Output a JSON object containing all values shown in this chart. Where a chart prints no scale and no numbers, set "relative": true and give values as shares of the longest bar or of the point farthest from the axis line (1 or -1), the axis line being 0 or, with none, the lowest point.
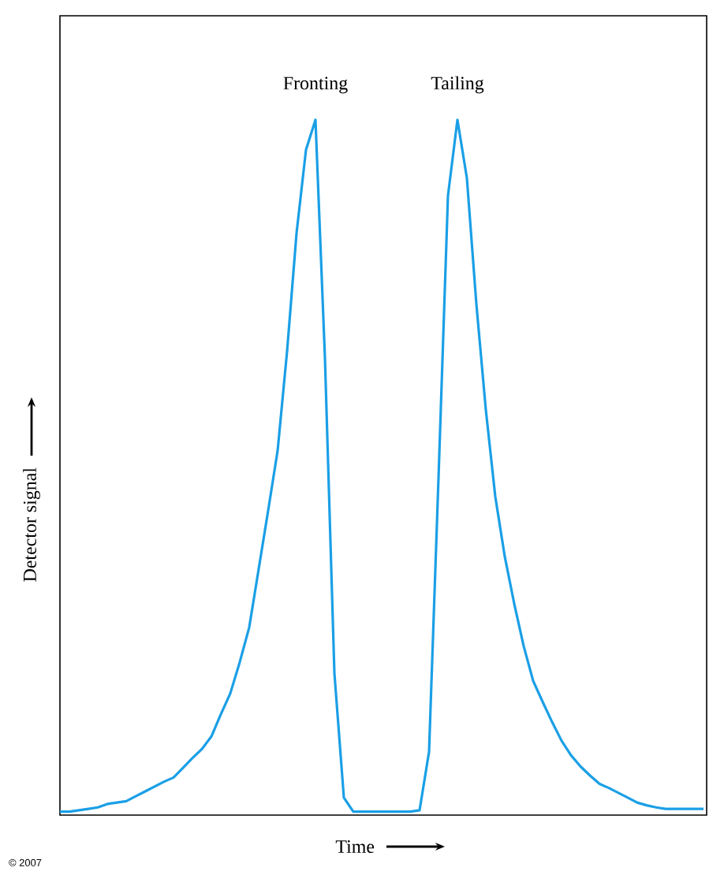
{
  "chart_data": {
    "type": "line",
    "relative": true,
    "xlabel": "Time",
    "ylabel": "Detector signal",
    "annotations": [
      "Fronting",
      "Tailing",
      "© 2007"
    ],
    "categories": [
      null,
      null,
      null,
      null,
      null,
      null,
      null,
      null,
      null,
      null,
      null,
      null,
      null,
      null,
      null,
      null,
      null,
      null,
      null,
      null,
      null,
      null,
      null,
      null,
      null,
      null,
      null,
      null,
      null,
      null,
      null,
      null,
      null,
      null,
      null,
      null,
      null,
      null,
      null,
      null,
      null,
      null,
      null,
      null,
      null,
      null,
      null,
      null,
      null,
      null,
      null,
      null,
      null,
      null,
      null,
      null,
      null,
      null,
      null,
      null,
      null,
      null,
      null,
      null,
      null,
      null,
      null,
      null,
      null
    ],
    "series": [
      {
        "color": "#1a9fe6",
        "values": [
          0.005,
          0.005,
          0.007,
          0.009,
          0.011,
          0.016,
          0.018,
          0.02,
          0.027,
          0.034,
          0.041,
          0.048,
          0.054,
          0.068,
          0.082,
          0.095,
          0.113,
          0.145,
          0.175,
          0.22,
          0.27,
          0.354,
          0.438,
          0.524,
          0.667,
          0.837,
          0.957,
          1,
          0.658,
          0.204,
          0.025,
          0.005,
          0.005,
          0.005,
          0.005,
          0.005,
          0.005,
          0.005,
          0.007,
          0.091,
          0.485,
          0.891,
          1,
          0.916,
          0.735,
          0.583,
          0.458,
          0.372,
          0.304,
          0.243,
          0.193,
          0.163,
          0.134,
          0.107,
          0.086,
          0.07,
          0.057,
          0.045,
          0.039,
          0.032,
          0.025,
          0.018,
          0.014,
          0.011,
          0.009,
          0.009,
          0.009,
          0.009,
          0.009
        ]
      }
    ],
    "marker": "none",
    "line_style": "solid"
  }
}
